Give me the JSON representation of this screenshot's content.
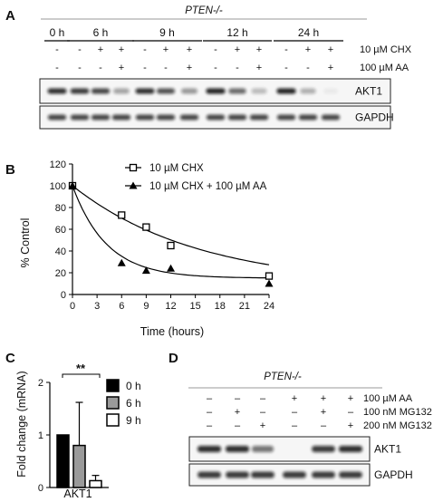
{
  "panels": [
    "A",
    "B",
    "C",
    "D"
  ],
  "panel_a": {
    "genotype": "PTEN-/-",
    "timepoints": [
      "0 h",
      "6 h",
      "9 h",
      "12 h",
      "24 h"
    ],
    "treatment_rows": [
      {
        "label": "10 µM  CHX",
        "signs": [
          "-",
          "-",
          "+",
          "+",
          "-",
          "+",
          "+",
          "-",
          "+",
          "+",
          "-",
          "+",
          "+"
        ]
      },
      {
        "label": "100 µM  AA",
        "signs": [
          "-",
          "-",
          "-",
          "+",
          "-",
          "-",
          "+",
          "-",
          "-",
          "+",
          "-",
          "-",
          "+"
        ]
      }
    ],
    "blots": [
      {
        "label": "AKT1",
        "intensities": [
          0.85,
          0.8,
          0.75,
          0.35,
          0.85,
          0.7,
          0.4,
          0.9,
          0.6,
          0.25,
          0.9,
          0.3,
          0.05
        ]
      },
      {
        "label": "GAPDH",
        "intensities": [
          0.75,
          0.75,
          0.75,
          0.75,
          0.75,
          0.75,
          0.75,
          0.75,
          0.75,
          0.75,
          0.75,
          0.75,
          0.75
        ]
      }
    ]
  },
  "chart_data": [
    {
      "panel": "B",
      "type": "line",
      "xlabel": "Time (hours)",
      "ylabel": "% Control",
      "xlim": [
        0,
        24
      ],
      "ylim": [
        0,
        120
      ],
      "xticks": [
        "0",
        "3",
        "6",
        "9",
        "12",
        "15",
        "18",
        "21",
        "24"
      ],
      "yticks": [
        "0",
        "20",
        "40",
        "60",
        "80",
        "100",
        "120"
      ],
      "legend": "top-center",
      "series": [
        {
          "name": "10 µM  CHX",
          "marker": "open-square",
          "points": [
            [
              0,
              100
            ],
            [
              6,
              73
            ],
            [
              9,
              62
            ],
            [
              12,
              45
            ],
            [
              24,
              17
            ]
          ]
        },
        {
          "name": "10 µM  CHX + 100 µM  AA",
          "marker": "filled-triangle",
          "points": [
            [
              0,
              100
            ],
            [
              6,
              29
            ],
            [
              9,
              22
            ],
            [
              12,
              24
            ],
            [
              24,
              10
            ]
          ]
        }
      ]
    },
    {
      "panel": "C",
      "type": "bar",
      "ylabel": "Fold change (mRNA)",
      "categories": [
        "AKT1"
      ],
      "ylim": [
        0,
        2
      ],
      "yticks": [
        "0",
        "1",
        "2"
      ],
      "series": [
        {
          "name": "0 h",
          "value": 1.0,
          "error": 0.0,
          "color": "#000000"
        },
        {
          "name": "6 h",
          "value": 0.8,
          "error": 0.82,
          "color": "#9a9a9a"
        },
        {
          "name": "9 h",
          "value": 0.13,
          "error": 0.1,
          "color": "#ffffff"
        }
      ],
      "significance": "**"
    }
  ],
  "panel_d": {
    "genotype": "PTEN-/-",
    "treatment_rows": [
      {
        "label": "100 µM AA",
        "signs": [
          "–",
          "–",
          "–",
          "+",
          "+",
          "+"
        ]
      },
      {
        "label": "100 nM MG132",
        "signs": [
          "–",
          "+",
          "–",
          "–",
          "+",
          "–"
        ]
      },
      {
        "label": "200 nM MG132",
        "signs": [
          "–",
          "–",
          "+",
          "–",
          "–",
          "+"
        ]
      }
    ],
    "blots": [
      {
        "label": "AKT1",
        "intensities": [
          0.85,
          0.85,
          0.55,
          0.0,
          0.8,
          0.85
        ]
      },
      {
        "label": "GAPDH",
        "intensities": [
          0.8,
          0.8,
          0.8,
          0.8,
          0.8,
          0.8
        ]
      }
    ]
  }
}
